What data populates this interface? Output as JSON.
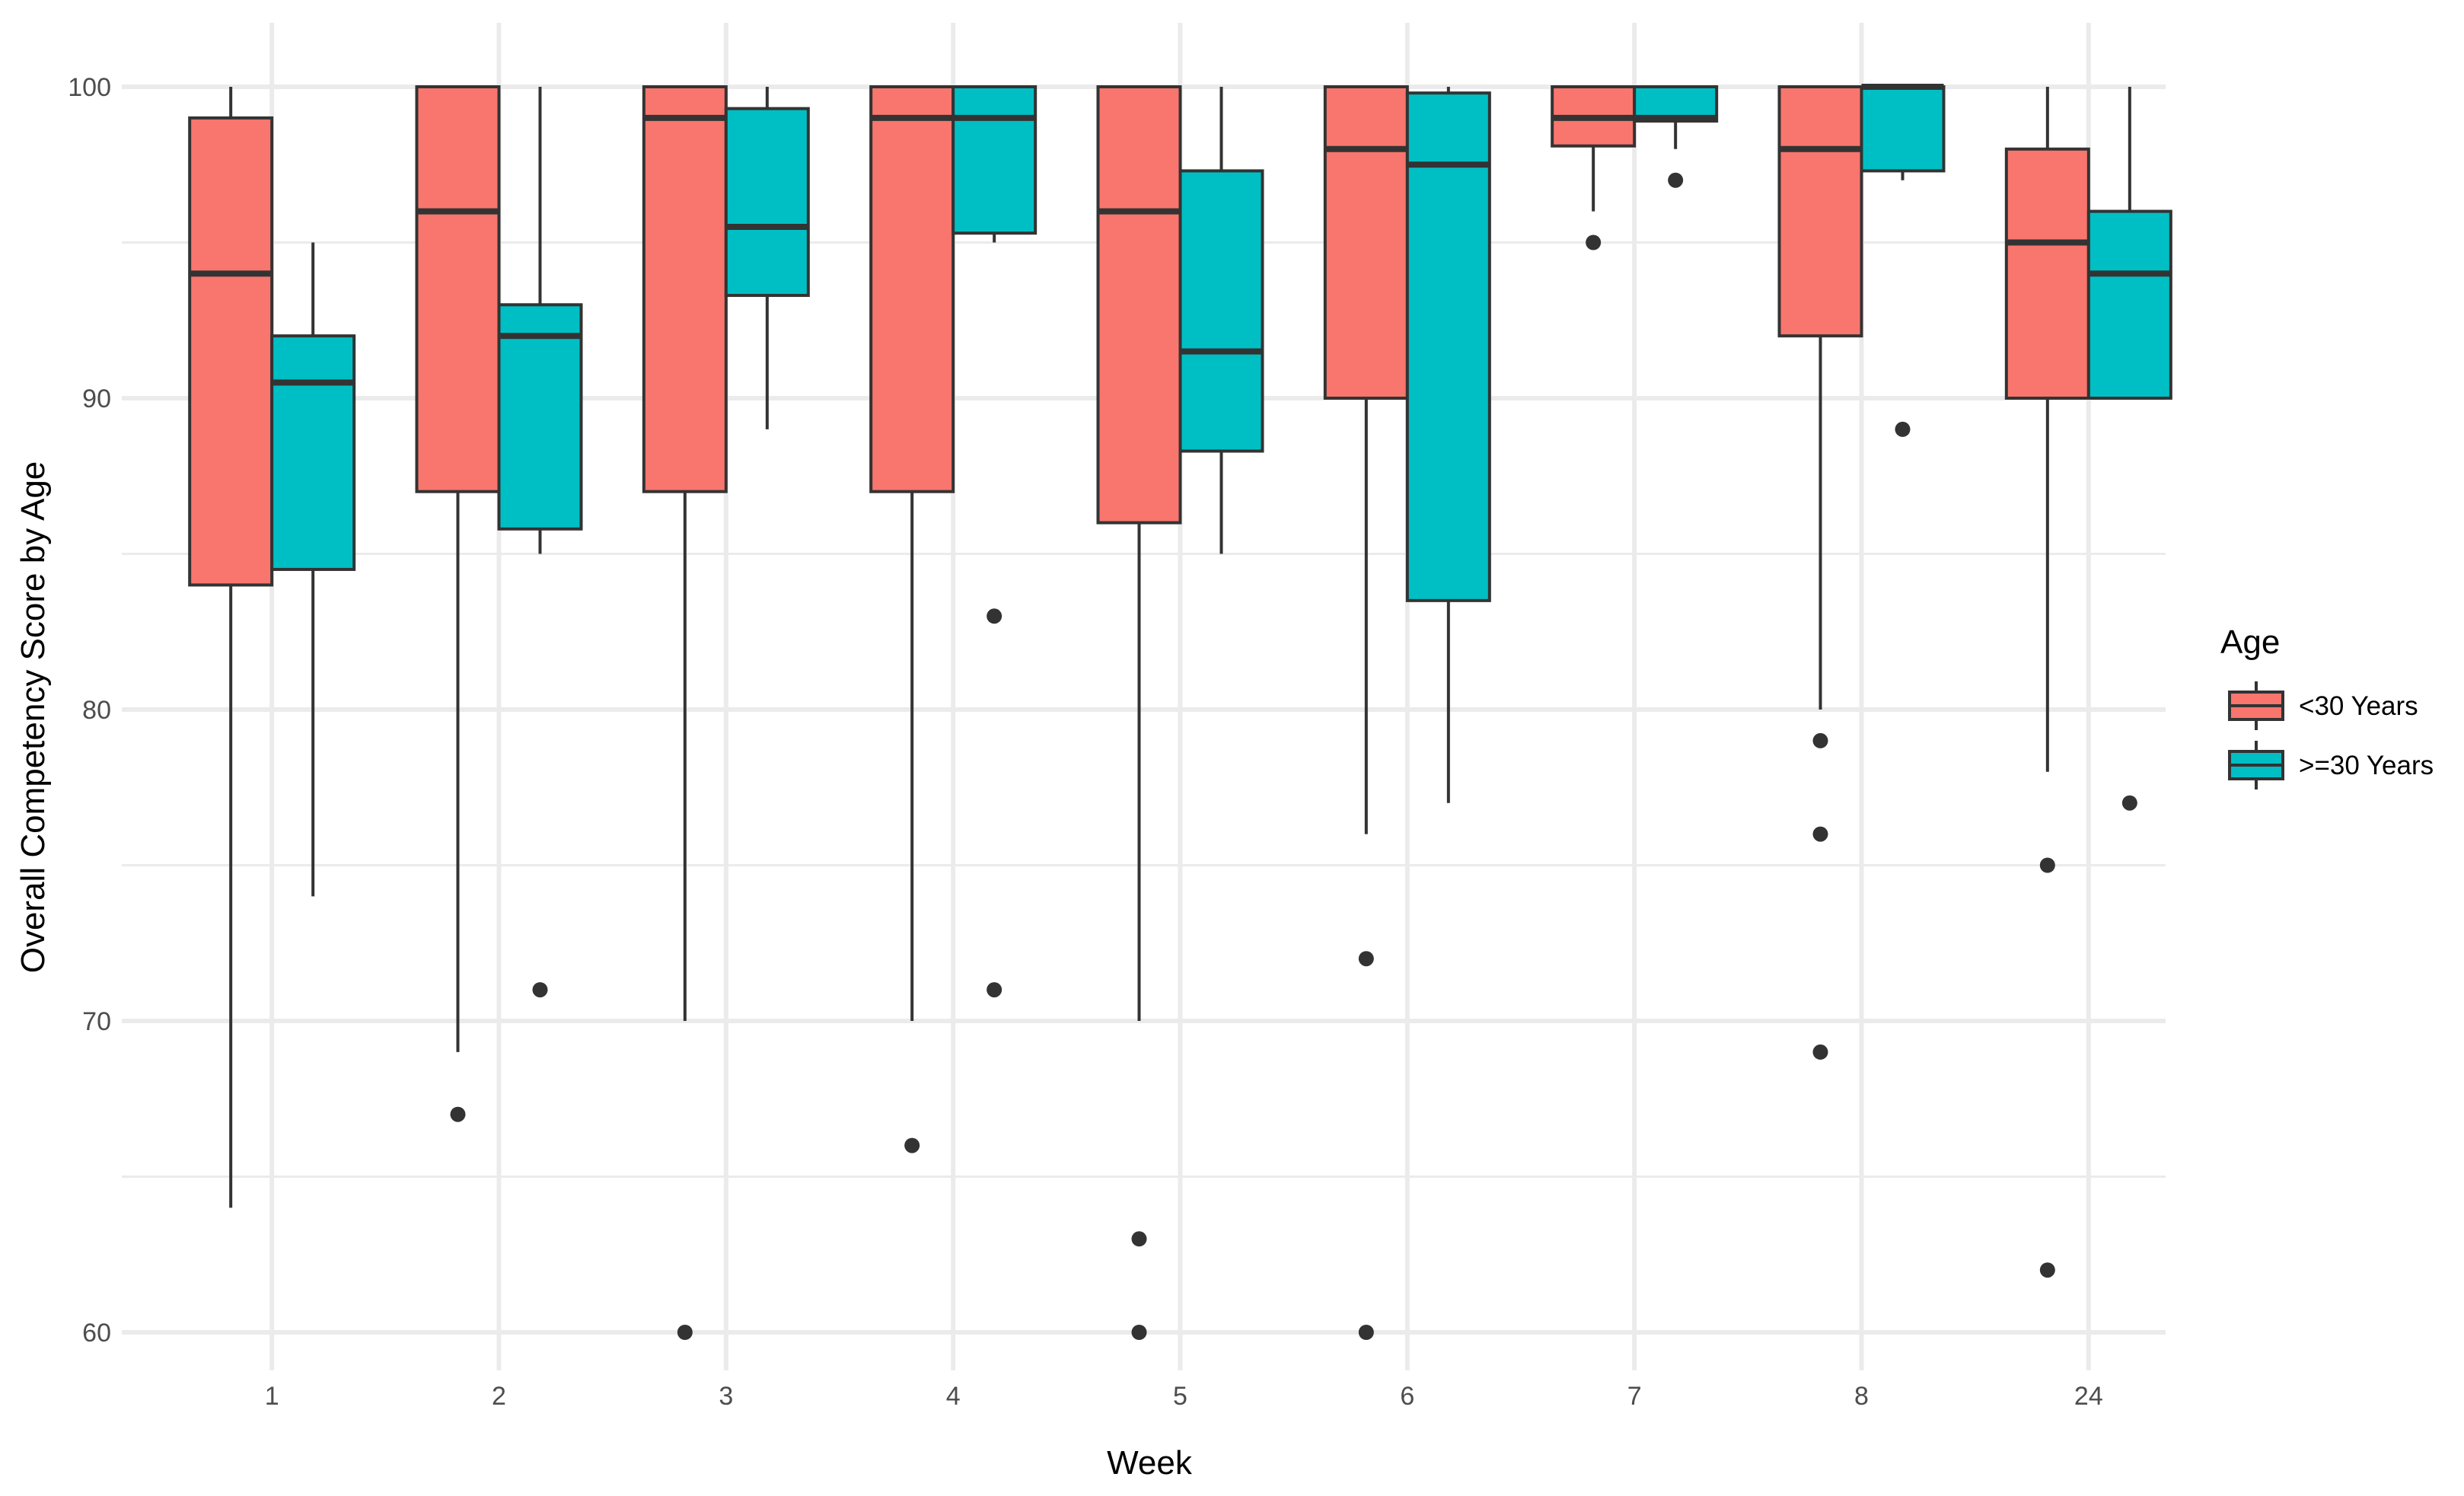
{
  "chart_data": {
    "type": "boxplot",
    "title": "",
    "xlabel": "Week",
    "ylabel": "Overall Competency Score by Age",
    "ylim": [
      58,
      101.5
    ],
    "y_ticks": [
      60,
      70,
      80,
      90,
      100
    ],
    "grid": true,
    "legend": {
      "title": "Age",
      "position": "right"
    },
    "categories": [
      "1",
      "2",
      "3",
      "4",
      "5",
      "6",
      "7",
      "8",
      "24"
    ],
    "series": [
      {
        "name": "<30 Years",
        "color": "#F8766D",
        "boxes": [
          {
            "whisker_low": 64,
            "q1": 84,
            "median": 94,
            "q3": 99,
            "whisker_high": 100,
            "outliers": []
          },
          {
            "whisker_low": 69,
            "q1": 87,
            "median": 96,
            "q3": 100,
            "whisker_high": 100,
            "outliers": [
              67
            ]
          },
          {
            "whisker_low": 70,
            "q1": 87,
            "median": 99,
            "q3": 100,
            "whisker_high": 100,
            "outliers": [
              60
            ]
          },
          {
            "whisker_low": 70,
            "q1": 87,
            "median": 99,
            "q3": 100,
            "whisker_high": 100,
            "outliers": [
              66
            ]
          },
          {
            "whisker_low": 70,
            "q1": 86,
            "median": 96,
            "q3": 100,
            "whisker_high": 100,
            "outliers": [
              63,
              60
            ]
          },
          {
            "whisker_low": 76,
            "q1": 90,
            "median": 98,
            "q3": 100,
            "whisker_high": 100,
            "outliers": [
              72,
              60
            ]
          },
          {
            "whisker_low": 96,
            "q1": 98.1,
            "median": 99,
            "q3": 100,
            "whisker_high": 100,
            "outliers": [
              95
            ]
          },
          {
            "whisker_low": 80,
            "q1": 92,
            "median": 98,
            "q3": 100,
            "whisker_high": 100,
            "outliers": [
              79,
              76,
              69
            ]
          },
          {
            "whisker_low": 78,
            "q1": 90,
            "median": 95,
            "q3": 98,
            "whisker_high": 100,
            "outliers": [
              75,
              62
            ]
          }
        ]
      },
      {
        "name": ">=30 Years",
        "color": "#00BFC4",
        "boxes": [
          {
            "whisker_low": 74,
            "q1": 84.5,
            "median": 90.5,
            "q3": 92,
            "whisker_high": 95,
            "outliers": []
          },
          {
            "whisker_low": 85,
            "q1": 85.8,
            "median": 92,
            "q3": 93,
            "whisker_high": 100,
            "outliers": [
              71
            ]
          },
          {
            "whisker_low": 89,
            "q1": 93.3,
            "median": 95.5,
            "q3": 99.3,
            "whisker_high": 100,
            "outliers": []
          },
          {
            "whisker_low": 95,
            "q1": 95.3,
            "median": 99,
            "q3": 100,
            "whisker_high": 100,
            "outliers": [
              83,
              71
            ]
          },
          {
            "whisker_low": 85,
            "q1": 88.3,
            "median": 91.5,
            "q3": 97.3,
            "whisker_high": 100,
            "outliers": []
          },
          {
            "whisker_low": 77,
            "q1": 83.5,
            "median": 97.5,
            "q3": 99.8,
            "whisker_high": 100,
            "outliers": []
          },
          {
            "whisker_low": 98,
            "q1": 98.9,
            "median": 99,
            "q3": 100,
            "whisker_high": 100,
            "outliers": [
              97
            ]
          },
          {
            "whisker_low": 97,
            "q1": 97.3,
            "median": 100,
            "q3": 100,
            "whisker_high": 100,
            "outliers": [
              89
            ]
          },
          {
            "whisker_low": 90,
            "q1": 90,
            "median": 94,
            "q3": 96,
            "whisker_high": 100,
            "outliers": [
              77
            ]
          }
        ]
      }
    ]
  }
}
